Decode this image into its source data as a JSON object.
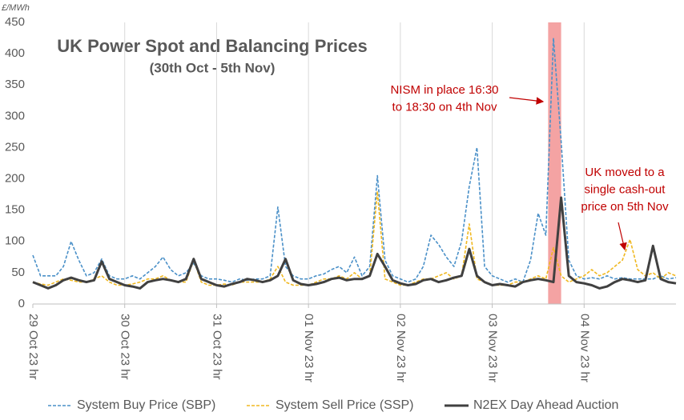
{
  "chart_data": {
    "type": "line",
    "title": "UK Power Spot and Balancing Prices",
    "subtitle": "(30th Oct - 5th Nov)",
    "y_label": "£/MWh",
    "x": [
      0,
      2,
      4,
      6,
      8,
      10,
      12,
      14,
      16,
      18,
      20,
      22,
      24,
      26,
      28,
      30,
      32,
      34,
      36,
      38,
      40,
      42,
      44,
      46,
      48,
      50,
      52,
      54,
      56,
      58,
      60,
      62,
      64,
      66,
      68,
      70,
      72,
      74,
      76,
      78,
      80,
      82,
      84,
      86,
      88,
      90,
      92,
      94,
      96,
      98,
      100,
      102,
      104,
      106,
      108,
      110,
      112,
      114,
      116,
      118,
      120,
      122,
      124,
      126,
      128,
      130,
      132,
      134,
      136,
      138,
      140,
      142,
      144,
      146,
      148,
      150,
      152,
      154,
      156,
      158,
      160,
      162,
      164,
      166,
      168
    ],
    "xlim": [
      0,
      168
    ],
    "xticks": [
      {
        "value": 0,
        "label": "29 Oct 23 hr"
      },
      {
        "value": 24,
        "label": "30 Oct 23 hr"
      },
      {
        "value": 48,
        "label": "31 Oct 23 hr"
      },
      {
        "value": 72,
        "label": "01 Nov 23 hr"
      },
      {
        "value": 96,
        "label": "02 Nov 23 hr"
      },
      {
        "value": 120,
        "label": "03 Nov 23 hr"
      },
      {
        "value": 144,
        "label": "04 Nov 23 hr"
      }
    ],
    "ylim": [
      0,
      450
    ],
    "yticks": [
      0,
      50,
      100,
      150,
      200,
      250,
      300,
      350,
      400,
      450
    ],
    "grid": true,
    "legend": "bottom",
    "shaded_region": {
      "x": [
        134.6,
        138
      ],
      "color": "#f4a3a3"
    },
    "series": [
      {
        "name": "System Buy Price (SBP)",
        "color": "#4a90c8",
        "dashed": true,
        "values": [
          78,
          45,
          45,
          45,
          60,
          100,
          70,
          45,
          50,
          72,
          45,
          40,
          40,
          45,
          40,
          50,
          60,
          75,
          55,
          45,
          50,
          65,
          45,
          40,
          40,
          38,
          35,
          40,
          38,
          40,
          40,
          45,
          155,
          60,
          45,
          40,
          40,
          45,
          48,
          55,
          60,
          50,
          75,
          45,
          60,
          205,
          70,
          45,
          40,
          35,
          40,
          60,
          110,
          95,
          75,
          60,
          100,
          188,
          250,
          60,
          45,
          40,
          35,
          40,
          35,
          70,
          145,
          110,
          425,
          260,
          70,
          45,
          40,
          42,
          40,
          45,
          40,
          42,
          40,
          40,
          40,
          40,
          45,
          40,
          42
        ]
      },
      {
        "name": "System Sell Price (SSP)",
        "color": "#f0b820",
        "dashed": true,
        "values": [
          35,
          32,
          30,
          35,
          40,
          38,
          35,
          35,
          40,
          45,
          35,
          30,
          30,
          32,
          35,
          40,
          40,
          45,
          38,
          35,
          35,
          70,
          35,
          30,
          30,
          32,
          30,
          35,
          35,
          35,
          35,
          40,
          60,
          35,
          30,
          30,
          30,
          35,
          40,
          40,
          45,
          40,
          50,
          40,
          45,
          180,
          40,
          35,
          30,
          30,
          35,
          40,
          40,
          45,
          50,
          40,
          45,
          128,
          40,
          35,
          30,
          30,
          30,
          35,
          35,
          40,
          45,
          40,
          90,
          45,
          35,
          40,
          45,
          55,
          45,
          50,
          60,
          70,
          103,
          55,
          45,
          50,
          40,
          50,
          45
        ]
      },
      {
        "name": "N2EX Day Ahead Auction",
        "color": "#404040",
        "dashed": false,
        "values": [
          35,
          30,
          25,
          30,
          38,
          42,
          38,
          35,
          38,
          68,
          40,
          35,
          30,
          28,
          25,
          35,
          38,
          40,
          38,
          35,
          40,
          72,
          40,
          35,
          30,
          28,
          32,
          35,
          40,
          38,
          35,
          38,
          45,
          72,
          38,
          32,
          30,
          32,
          35,
          40,
          42,
          38,
          40,
          40,
          45,
          80,
          60,
          38,
          33,
          30,
          32,
          38,
          40,
          35,
          38,
          42,
          45,
          88,
          45,
          35,
          30,
          32,
          30,
          28,
          35,
          38,
          40,
          38,
          35,
          170,
          45,
          35,
          33,
          30,
          25,
          28,
          35,
          40,
          38,
          35,
          38,
          93,
          40,
          35,
          33
        ]
      }
    ],
    "annotations": [
      {
        "lines": [
          "NISM in place 16:30",
          "to 18:30 on 4th Nov"
        ],
        "color": "#c00000"
      },
      {
        "lines": [
          "UK moved to a",
          "single cash-out",
          "price on 5th Nov"
        ],
        "color": "#c00000"
      }
    ]
  }
}
